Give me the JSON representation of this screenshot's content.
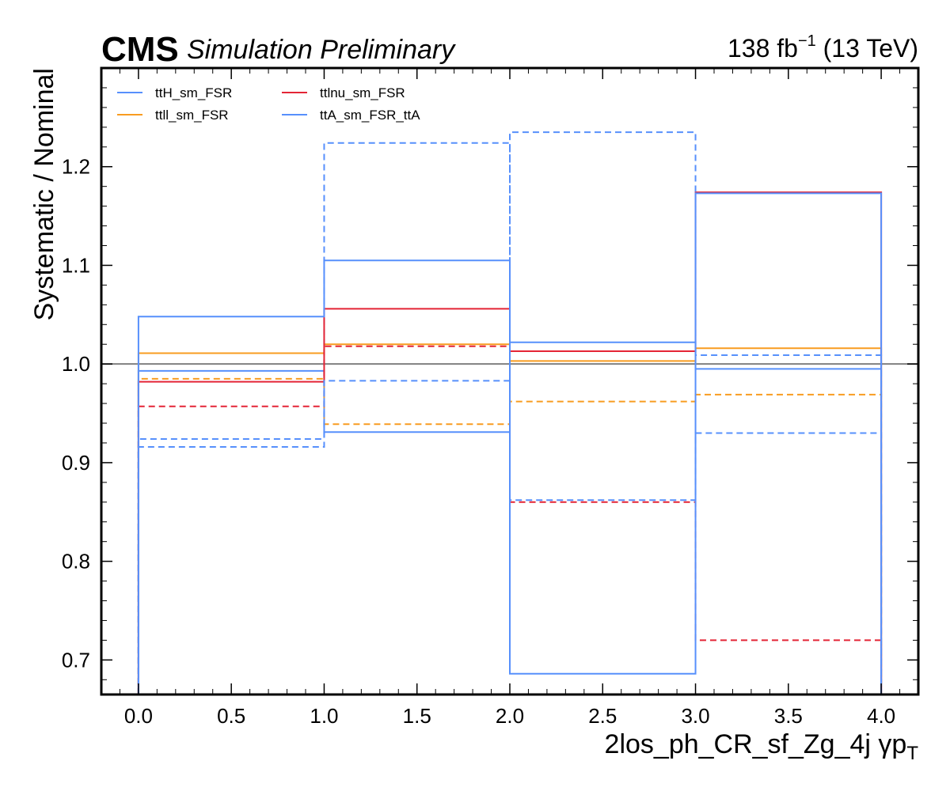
{
  "header": {
    "experiment": "CMS",
    "status": "Simulation Preliminary",
    "lumi_value": "138 fb",
    "lumi_exp": "−1",
    "energy": " (13 TeV)"
  },
  "chart_data": {
    "type": "line",
    "style": "step",
    "xlabel": "2los_ph_CR_sf_Zg_4j   γp",
    "xlabel_sub": "T",
    "ylabel": "Systematic / Nominal",
    "xlim": [
      -0.2,
      4.2
    ],
    "ylim": [
      0.665,
      1.3
    ],
    "xticks": [
      0.0,
      0.5,
      1.0,
      1.5,
      2.0,
      2.5,
      3.0,
      3.5,
      4.0
    ],
    "xtick_labels": [
      "0.0",
      "0.5",
      "1.0",
      "1.5",
      "2.0",
      "2.5",
      "3.0",
      "3.5",
      "4.0"
    ],
    "yticks": [
      0.7,
      0.8,
      0.9,
      1.0,
      1.1,
      1.2
    ],
    "ytick_labels": [
      "0.7",
      "0.8",
      "0.9",
      "1.0",
      "1.1",
      "1.2"
    ],
    "reference_line": 1.0,
    "bin_edges": [
      0,
      1,
      2,
      3,
      4
    ],
    "legend_position": "upper-left",
    "legend_columns": 2,
    "series": [
      {
        "name": "ttH_sm_FSR",
        "color": "#5790fc",
        "up": [
          0.993,
          0.931,
          1.022,
          0.995
        ],
        "down": [
          0.924,
          1.224,
          0.862,
          0.93
        ]
      },
      {
        "name": "ttll_sm_FSR",
        "color": "#f89c20",
        "up": [
          1.011,
          1.02,
          1.003,
          1.016
        ],
        "down": [
          0.985,
          0.939,
          0.962,
          0.969
        ]
      },
      {
        "name": "ttlnu_sm_FSR",
        "color": "#e42536",
        "up": [
          0.982,
          1.056,
          1.013,
          1.174
        ],
        "down": [
          0.957,
          1.018,
          0.86,
          0.72
        ]
      },
      {
        "name": "ttA_sm_FSR_ttA",
        "color": "#5790fc",
        "up": [
          1.048,
          1.105,
          0.686,
          1.173
        ],
        "down": [
          0.916,
          0.983,
          1.235,
          1.009
        ]
      }
    ]
  }
}
